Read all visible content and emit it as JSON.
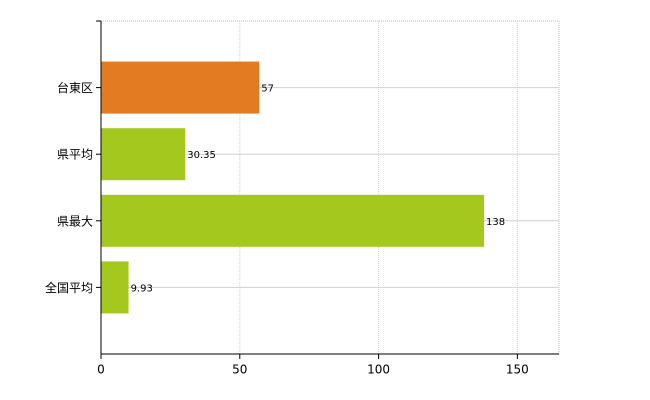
{
  "chart_data": {
    "type": "bar",
    "orientation": "horizontal",
    "categories": [
      "台東区",
      "県平均",
      "県最大",
      "全国平均"
    ],
    "values": [
      57,
      30.35,
      138,
      9.93
    ],
    "colors": [
      "#e27b22",
      "#a5c81f",
      "#a5c81f",
      "#a5c81f"
    ],
    "xlim": [
      0,
      165
    ],
    "xticks": [
      0,
      50,
      100,
      150
    ],
    "grid": true
  }
}
